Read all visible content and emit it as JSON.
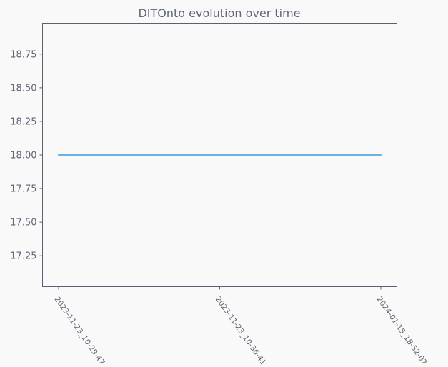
{
  "chart_data": {
    "type": "line",
    "title": "DITOnto evolution over time",
    "xlabel": "",
    "ylabel": "",
    "categories": [
      "2023-11-23_10-29-47",
      "2023-11-23_10-36-41",
      "2024-01-15_18-52-07"
    ],
    "series": [
      {
        "values": [
          18.0,
          18.0,
          18.0
        ]
      }
    ],
    "ylim": [
      17.02,
      18.98
    ],
    "yticks": [
      "17.25",
      "17.50",
      "17.75",
      "18.00",
      "18.25",
      "18.50",
      "18.75"
    ],
    "grid": false,
    "legend": "none",
    "colors": {
      "line": "#3a9ad9",
      "axis": "#5a6173",
      "text": "#5f6678",
      "background": "#f9f9f9"
    }
  }
}
